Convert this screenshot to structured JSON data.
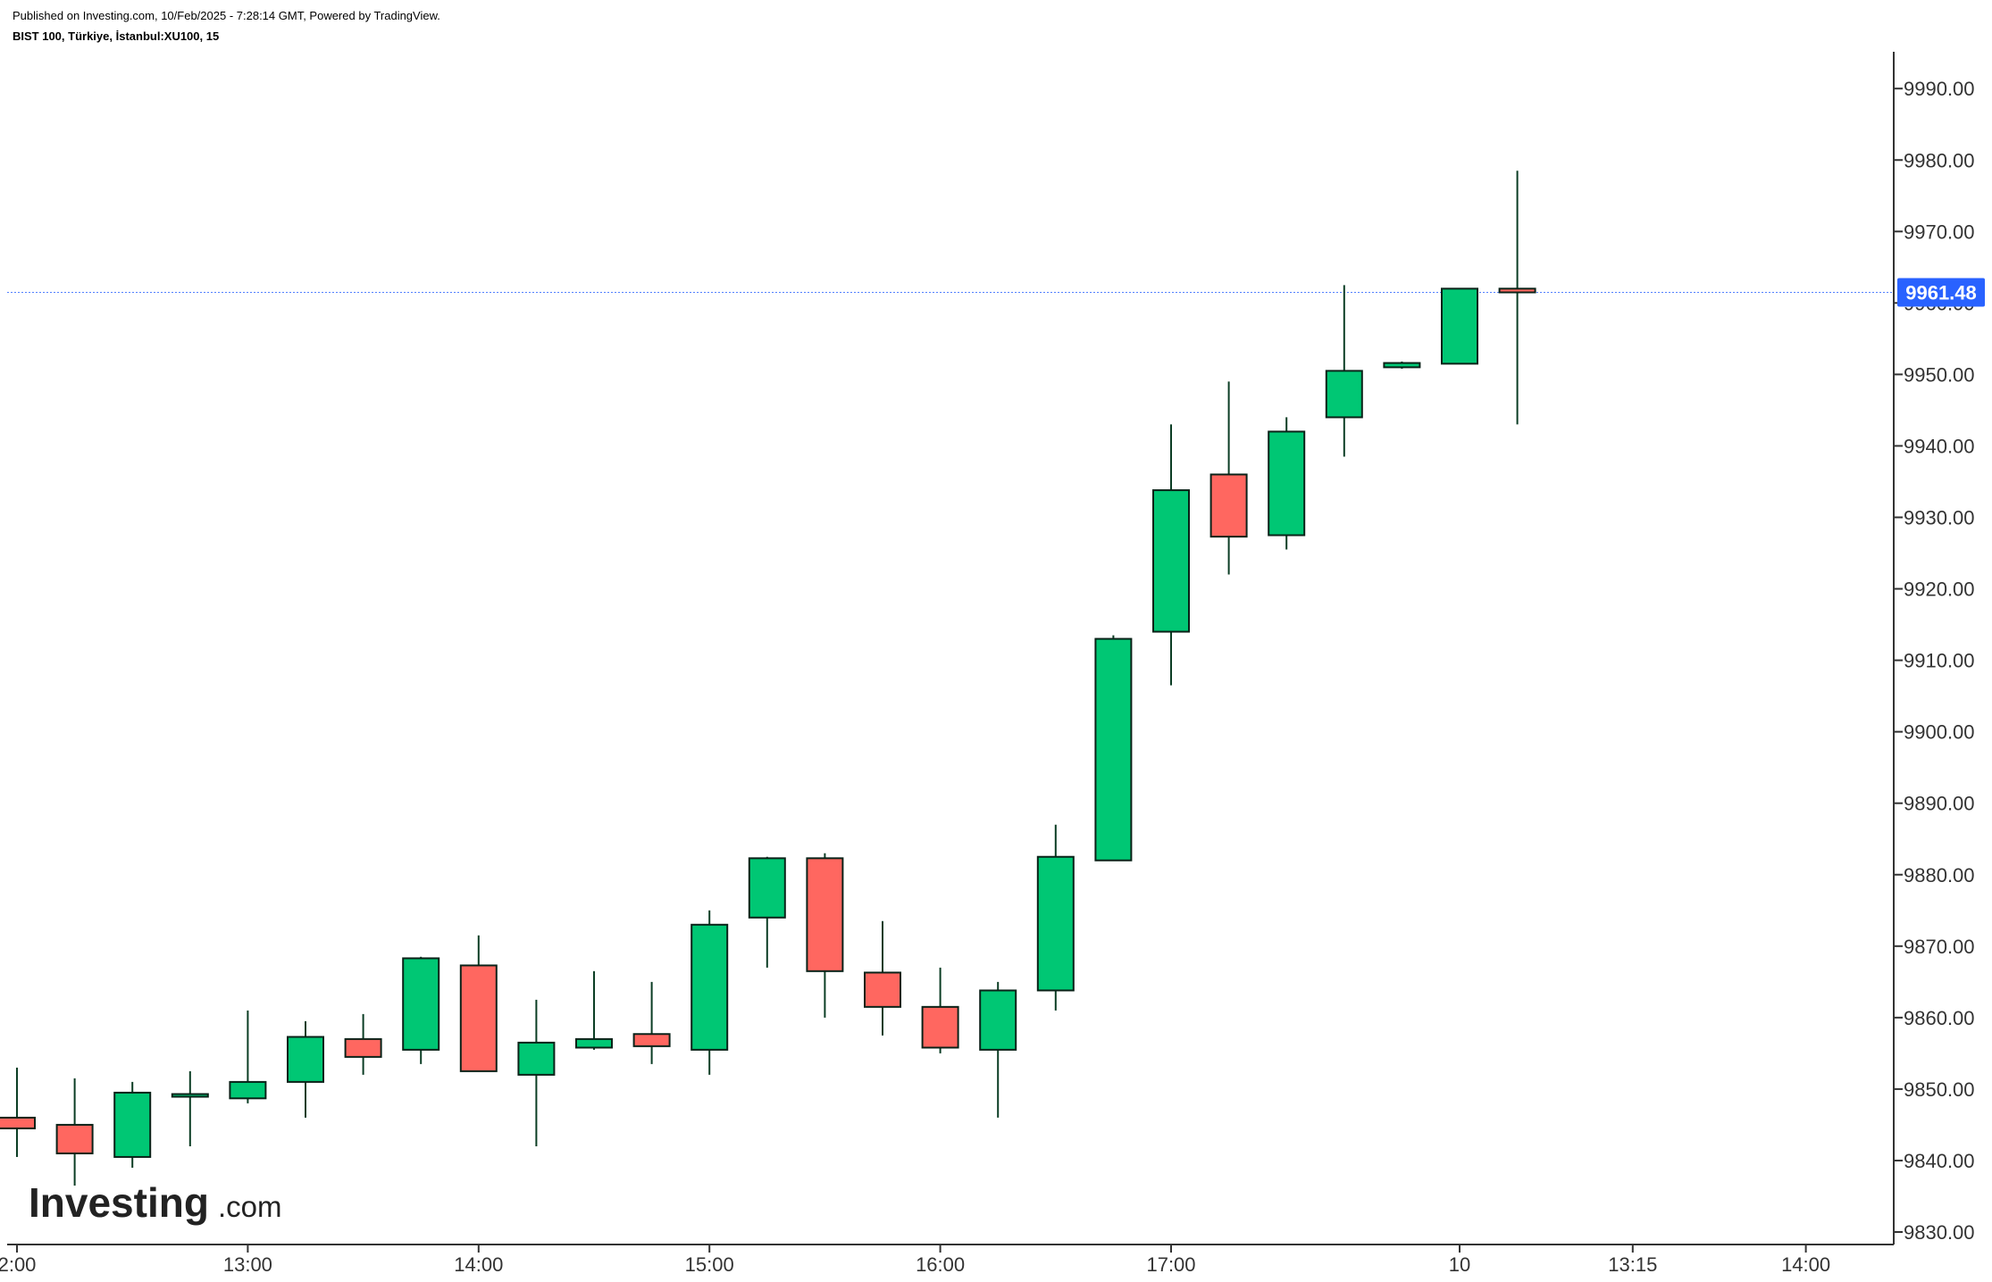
{
  "header": {
    "published": "Published on Investing.com, 10/Feb/2025 - 7:28:14 GMT, Powered by TradingView.",
    "symbol": "BIST 100, Türkiye, İstanbul:XU100, 15"
  },
  "logo": {
    "main": "Investing",
    "suffix": ".com"
  },
  "colors": {
    "up": "#00c774",
    "down": "#ff6760",
    "wick": "#0b3d24",
    "price_line": "#2962ff",
    "price_tag": "#2962ff",
    "axis": "#333333"
  },
  "chart_data": {
    "type": "candlestick",
    "title": "BIST 100, Türkiye, İstanbul:XU100, 15",
    "interval": "15",
    "current_price": 9961.48,
    "current_price_label": "9961.48",
    "ylim": [
      9828,
      10006
    ],
    "y_ticks": [
      9830,
      9840,
      9850,
      9860,
      9870,
      9880,
      9890,
      9900,
      9910,
      9920,
      9930,
      9940,
      9950,
      9960,
      9970,
      9980,
      9990
    ],
    "y_tick_labels": [
      "9830.00",
      "9840.00",
      "9850.00",
      "9860.00",
      "9870.00",
      "9880.00",
      "9890.00",
      "9900.00",
      "9910.00",
      "9920.00",
      "9930.00",
      "9940.00",
      "9950.00",
      "9960.00",
      "9970.00",
      "9980.00",
      "9990.00"
    ],
    "x_tick_labels": [
      {
        "label": "2:00",
        "bar": 0
      },
      {
        "label": "13:00",
        "bar": 4
      },
      {
        "label": "14:00",
        "bar": 8
      },
      {
        "label": "15:00",
        "bar": 12
      },
      {
        "label": "16:00",
        "bar": 16
      },
      {
        "label": "17:00",
        "bar": 20
      },
      {
        "label": "10",
        "bar": 25
      },
      {
        "label": "13:15",
        "bar": 28
      },
      {
        "label": "14:00",
        "bar": 31
      }
    ],
    "candles": [
      {
        "o": 9846.0,
        "h": 9853.0,
        "l": 9840.5,
        "c": 9844.5
      },
      {
        "o": 9845.0,
        "h": 9851.5,
        "l": 9836.5,
        "c": 9841.0
      },
      {
        "o": 9840.5,
        "h": 9851.0,
        "l": 9839.0,
        "c": 9849.5
      },
      {
        "o": 9849.0,
        "h": 9852.5,
        "l": 9842.0,
        "c": 9849.3
      },
      {
        "o": 9848.7,
        "h": 9861.0,
        "l": 9848.0,
        "c": 9851.0
      },
      {
        "o": 9851.0,
        "h": 9859.5,
        "l": 9846.0,
        "c": 9857.3
      },
      {
        "o": 9857.0,
        "h": 9860.5,
        "l": 9852.0,
        "c": 9854.5
      },
      {
        "o": 9855.5,
        "h": 9868.5,
        "l": 9853.5,
        "c": 9868.3
      },
      {
        "o": 9867.3,
        "h": 9871.5,
        "l": 9852.5,
        "c": 9852.5
      },
      {
        "o": 9852.0,
        "h": 9862.5,
        "l": 9842.0,
        "c": 9856.5
      },
      {
        "o": 9855.8,
        "h": 9866.5,
        "l": 9855.5,
        "c": 9857.0
      },
      {
        "o": 9857.7,
        "h": 9865.0,
        "l": 9853.5,
        "c": 9856.0
      },
      {
        "o": 9855.5,
        "h": 9875.0,
        "l": 9852.0,
        "c": 9873.0
      },
      {
        "o": 9874.0,
        "h": 9882.5,
        "l": 9867.0,
        "c": 9882.3
      },
      {
        "o": 9882.3,
        "h": 9883.0,
        "l": 9860.0,
        "c": 9866.5
      },
      {
        "o": 9866.3,
        "h": 9873.5,
        "l": 9857.5,
        "c": 9861.5
      },
      {
        "o": 9861.5,
        "h": 9867.0,
        "l": 9855.0,
        "c": 9855.8
      },
      {
        "o": 9855.5,
        "h": 9865.0,
        "l": 9846.0,
        "c": 9863.8
      },
      {
        "o": 9863.8,
        "h": 9887.0,
        "l": 9861.0,
        "c": 9882.5
      },
      {
        "o": 9882.0,
        "h": 9913.5,
        "l": 9882.0,
        "c": 9913.0
      },
      {
        "o": 9914.0,
        "h": 9943.0,
        "l": 9906.5,
        "c": 9933.8
      },
      {
        "o": 9936.0,
        "h": 9949.0,
        "l": 9922.0,
        "c": 9927.3
      },
      {
        "o": 9927.5,
        "h": 9944.0,
        "l": 9925.5,
        "c": 9942.0
      },
      {
        "o": 9944.0,
        "h": 9962.5,
        "l": 9938.5,
        "c": 9950.5
      },
      {
        "o": 9951.0,
        "h": 9951.8,
        "l": 9950.8,
        "c": 9951.6
      },
      {
        "o": 9951.5,
        "h": 9962.0,
        "l": 9951.5,
        "c": 9962.0
      },
      {
        "o": 9962.0,
        "h": 9978.5,
        "l": 9943.0,
        "c": 9961.48
      }
    ]
  }
}
